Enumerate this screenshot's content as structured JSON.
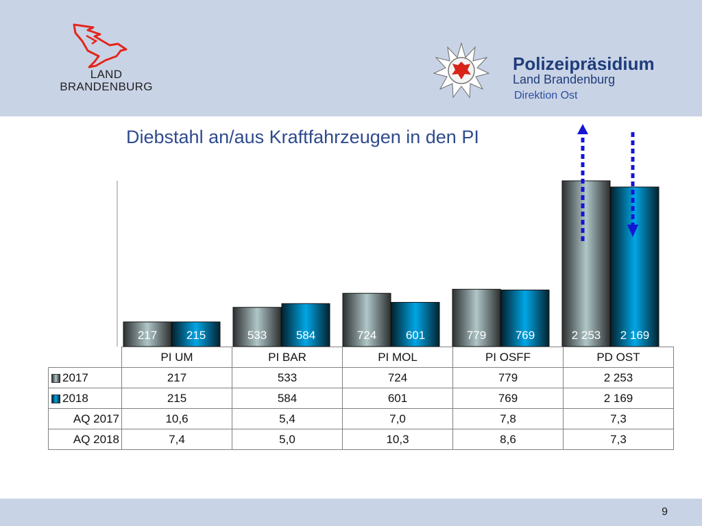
{
  "header": {
    "land_logo_text_line1": "LAND",
    "land_logo_text_line2": "BRANDENBURG",
    "police_title": "Polizeipräsidium",
    "police_subtitle": "Land Brandenburg",
    "police_direction": "Direktion Ost"
  },
  "colors": {
    "header_bg": "#c9d3e6",
    "title_color": "#2e4a8e",
    "series_2017": "#b0c6c8",
    "series_2018": "#00a6e6",
    "arrow_color": "#1515d4",
    "eagle_red": "#e2261c"
  },
  "chart_data": {
    "type": "bar",
    "title": "Diebstahl an/aus Kraftfahrzeugen in den PI",
    "categories": [
      "PI UM",
      "PI BAR",
      "PI MOL",
      "PI OSFF",
      "PD OST"
    ],
    "series": [
      {
        "name": "2017",
        "values": [
          217,
          533,
          724,
          779,
          2253
        ],
        "labels": [
          "217",
          "533",
          "724",
          "779",
          "2 253"
        ]
      },
      {
        "name": "2018",
        "values": [
          215,
          584,
          601,
          769,
          2169
        ],
        "labels": [
          "215",
          "584",
          "601",
          "769",
          "2 169"
        ]
      }
    ],
    "table_rows": [
      {
        "label": "2017",
        "legend": true,
        "values": [
          "217",
          "533",
          "724",
          "779",
          "2 253"
        ]
      },
      {
        "label": "2018",
        "legend": true,
        "values": [
          "215",
          "584",
          "601",
          "769",
          "2 169"
        ]
      },
      {
        "label": "AQ 2017",
        "legend": false,
        "values": [
          "10,6",
          "5,4",
          "7,0",
          "7,8",
          "7,3"
        ]
      },
      {
        "label": "AQ 2018",
        "legend": false,
        "values": [
          "7,4",
          "5,0",
          "10,3",
          "8,6",
          "7,3"
        ]
      }
    ],
    "annotations": [
      {
        "category": "PD OST",
        "series": "2017",
        "direction": "up",
        "style": "dotted arrow"
      },
      {
        "category": "PD OST",
        "series": "2018",
        "direction": "down",
        "style": "dotted arrow"
      }
    ]
  },
  "footer": {
    "page_number": "9"
  }
}
